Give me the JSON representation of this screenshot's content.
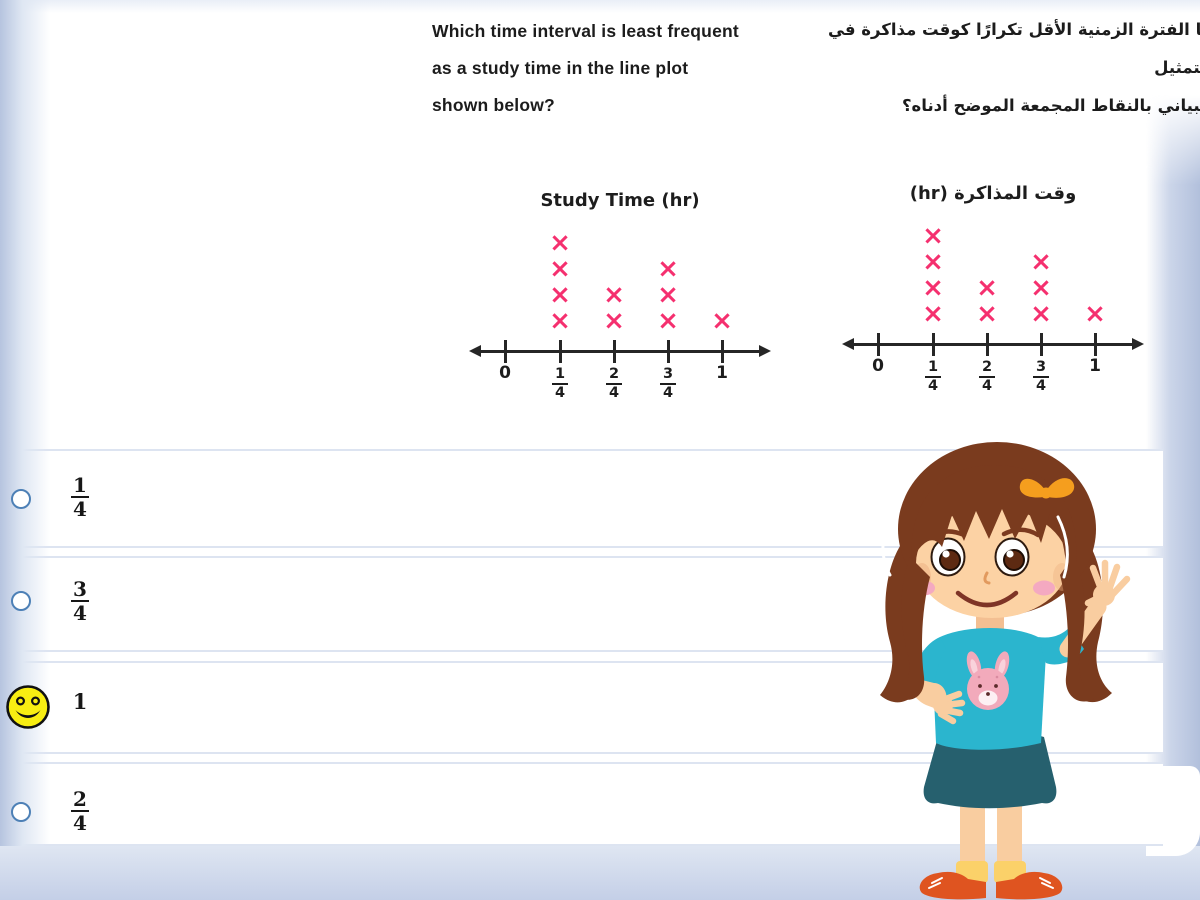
{
  "question": {
    "english_lines": [
      "Which time interval is least frequent",
      "as a study time in the line plot",
      "shown below?"
    ],
    "arabic_lines": [
      "ما الفترة الزمنية الأقل تكرارًا كوقت مذاكرة في التمثيل",
      "البياني بالنقاط المجمعة الموضح أدناه؟"
    ]
  },
  "chart_data": [
    {
      "type": "line_plot",
      "title": "Study Time (hr)",
      "dir": "ltr",
      "categories": [
        "0",
        "1/4",
        "2/4",
        "3/4",
        "1"
      ],
      "counts": [
        0,
        4,
        2,
        3,
        1
      ],
      "x_range": [
        0,
        1
      ],
      "marker_glyph": "×",
      "marker_color": "#f5306f",
      "axis_color": "#262626",
      "note": "each X above the number line = one occurrence"
    },
    {
      "type": "line_plot",
      "title": "وقت المذاكرة (hr)",
      "dir": "rtl",
      "categories": [
        "0",
        "1/4",
        "2/4",
        "3/4",
        "1"
      ],
      "counts": [
        0,
        4,
        2,
        3,
        1
      ],
      "x_range": [
        0,
        1
      ],
      "marker_glyph": "×",
      "marker_color": "#f5306f",
      "axis_color": "#262626",
      "note": "Arabic version of the same plot"
    }
  ],
  "options": [
    {
      "label": "1/4",
      "num": "1",
      "den": "4",
      "selected": false
    },
    {
      "label": "3/4",
      "num": "3",
      "den": "4",
      "selected": false
    },
    {
      "label": "1",
      "value": "1",
      "selected": true,
      "marker": "smiley-face"
    },
    {
      "label": "2/4",
      "num": "2",
      "den": "4",
      "selected": false
    }
  ],
  "colors": {
    "x_mark": "#f5306f",
    "radio_border": "#4d80b6",
    "row_border": "#dde4f1",
    "edge_blue": "#b4c2dd",
    "bottom_band": "#c4cfe7",
    "smiley_yellow": "#f8ee12"
  }
}
